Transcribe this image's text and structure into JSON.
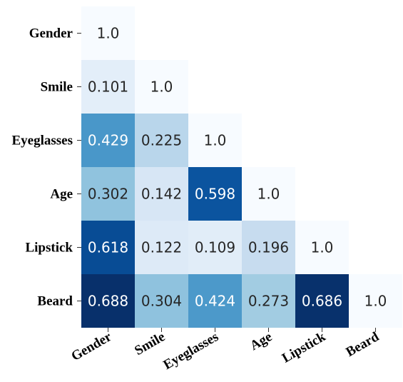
{
  "chart_data": {
    "type": "heatmap",
    "variables": [
      "Gender",
      "Smile",
      "Eyeglasses",
      "Age",
      "Lipstick",
      "Beard"
    ],
    "matrix": [
      [
        "1.0"
      ],
      [
        "0.101",
        "1.0"
      ],
      [
        "0.429",
        "0.225",
        "1.0"
      ],
      [
        "0.302",
        "0.142",
        "0.598",
        "1.0"
      ],
      [
        "0.618",
        "0.122",
        "0.109",
        "0.196",
        "1.0"
      ],
      [
        "0.688",
        "0.304",
        "0.424",
        "0.273",
        "0.686",
        "1.0"
      ]
    ],
    "colormap": "Blues",
    "diagonal_color": "#f7fbff",
    "triangle": "lower",
    "legend": "none",
    "grid": false
  }
}
